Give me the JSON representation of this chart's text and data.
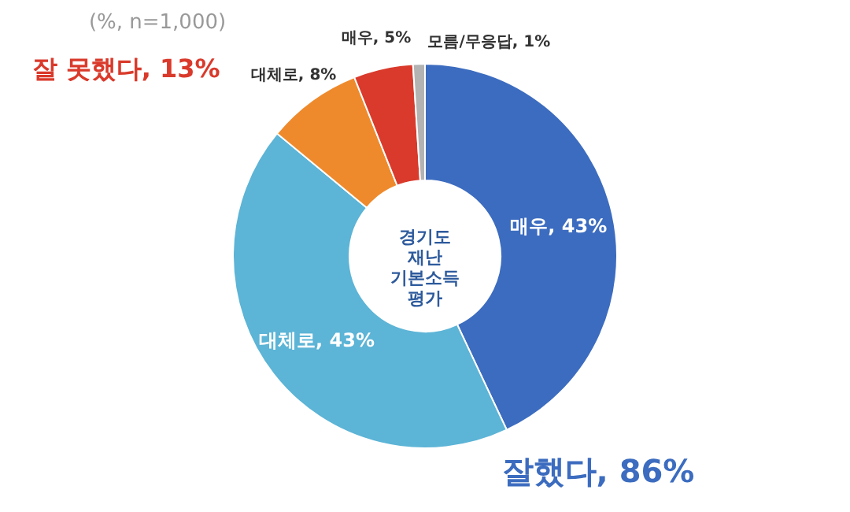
{
  "chart_data": {
    "type": "donut",
    "title": "경기도 재난 기본소득 평가",
    "subtitle": "(%, n=1,000)",
    "categories": [
      "매우",
      "대체로",
      "대체로",
      "매우",
      "모름/무응답"
    ],
    "values": [
      43,
      43,
      8,
      5,
      1
    ],
    "value_labels": [
      "43%",
      "43%",
      "8%",
      "5%",
      "1%"
    ],
    "colors": [
      "#3c6cbf",
      "#5cb4d6",
      "#ef8a2c",
      "#d93a2b",
      "#b3b3b3"
    ],
    "annotations": [
      "잘했다, 86%",
      "잘 못했다, 13%"
    ],
    "legend": false
  }
}
